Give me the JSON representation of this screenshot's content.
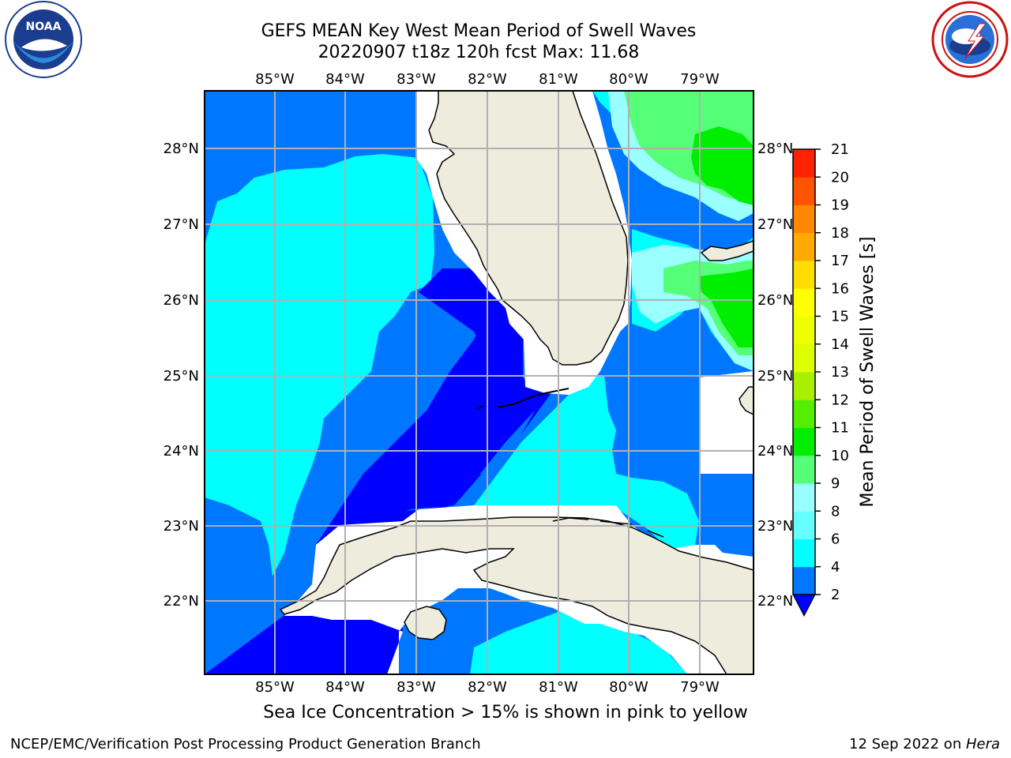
{
  "header": {
    "title_line1": "GEFS MEAN Key West Mean Period of Swell Waves",
    "title_line2": "20220907 t18z 120h fcst   Max: 11.68"
  },
  "logos": {
    "left": {
      "name": "noaa-logo",
      "text": "NOAA",
      "ring_text": "NATIONAL OCEANIC AND ATMOSPHERIC ADMINISTRATION · U.S. DEPARTMENT OF COMMERCE"
    },
    "right": {
      "name": "nws-logo",
      "ring_text": "NATIONAL WEATHER SERVICE"
    }
  },
  "map": {
    "lon_labels": [
      "85°W",
      "84°W",
      "83°W",
      "82°W",
      "81°W",
      "80°W",
      "79°W"
    ],
    "lat_labels": [
      "28°N",
      "27°N",
      "26°N",
      "25°N",
      "24°N",
      "23°N",
      "22°N"
    ],
    "extent": {
      "lon_min": -86.0,
      "lon_max": -78.25,
      "lat_min": 21.0,
      "lat_max": 28.75
    },
    "colors": {
      "land": "#eeecdc",
      "dark_blue": "#0000ff",
      "mid_blue": "#0077ff",
      "cyan": "#00ffff",
      "light_cyan": "#66ffff",
      "pale_cyan": "#99ffff",
      "light_green": "#55ff77",
      "green": "#00ee00",
      "coast": "#000000",
      "grid": "#b0b0b0"
    }
  },
  "colorbar": {
    "label": "Mean Period of Swell Waves [s]",
    "ticks": [
      "2",
      "4",
      "6",
      "8",
      "9",
      "10",
      "11",
      "12",
      "13",
      "14",
      "15",
      "16",
      "17",
      "18",
      "19",
      "20",
      "21"
    ],
    "colors": [
      "#0077ff",
      "#00ffff",
      "#66ffff",
      "#99ffff",
      "#55ff77",
      "#00ee00",
      "#55ee00",
      "#aaee00",
      "#ddff00",
      "#eeff00",
      "#ffff00",
      "#ffdd00",
      "#ffaa00",
      "#ff8800",
      "#ff5500",
      "#ff2200"
    ],
    "under_color": "#0000ff",
    "top_color": "#ff0000"
  },
  "caption": "Sea Ice Concentration > 15% is shown in pink to yellow",
  "footer": {
    "left": "NCEP/EMC/Verification Post Processing Product Generation Branch",
    "right_date": "12 Sep 2022 on ",
    "right_host": "Hera"
  }
}
